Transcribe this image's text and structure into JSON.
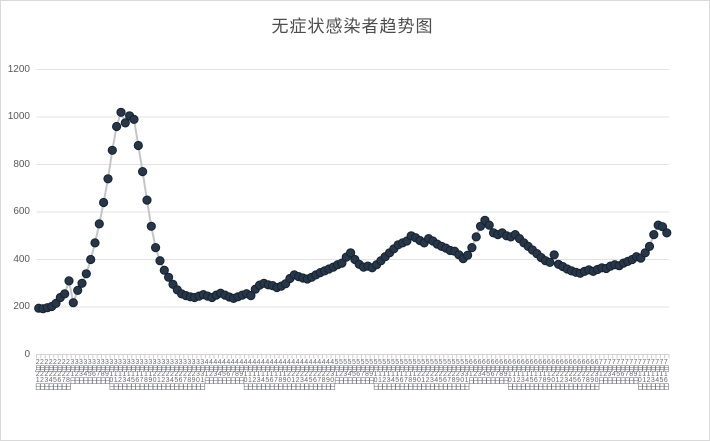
{
  "window": {
    "background": "#ffffff",
    "border_color": "#d9d9d9"
  },
  "chart_data": {
    "type": "line",
    "title": "无症状感染者趋势图",
    "xlabel": "",
    "ylabel": "",
    "ylim": [
      0,
      1200
    ],
    "y_ticks": [
      0,
      200,
      400,
      600,
      800,
      1000,
      1200
    ],
    "grid": true,
    "legend": "none",
    "marker": "circle",
    "style": {
      "marker_fill": "#263749",
      "marker_stroke": "#17222f",
      "line_color": "#c3c6c9",
      "grid_color": "#e2e2e2",
      "axis_color": "#d2d2d2",
      "tick_color": "#cfcfcf",
      "text_color": "#595959",
      "title_color": "#4d4d4d"
    },
    "categories": [
      "2月21日",
      "2月22日",
      "2月23日",
      "2月24日",
      "2月25日",
      "2月26日",
      "2月27日",
      "2月28日",
      "3月1日",
      "3月2日",
      "3月3日",
      "3月4日",
      "3月5日",
      "3月6日",
      "3月7日",
      "3月8日",
      "3月9日",
      "3月10日",
      "3月11日",
      "3月12日",
      "3月13日",
      "3月14日",
      "3月15日",
      "3月16日",
      "3月17日",
      "3月18日",
      "3月19日",
      "3月20日",
      "3月21日",
      "3月22日",
      "3月23日",
      "3月24日",
      "3月25日",
      "3月26日",
      "3月27日",
      "3月28日",
      "3月29日",
      "3月30日",
      "3月31日",
      "4月1日",
      "4月2日",
      "4月3日",
      "4月4日",
      "4月5日",
      "4月6日",
      "4月7日",
      "4月8日",
      "4月9日",
      "4月10日",
      "4月11日",
      "4月12日",
      "4月13日",
      "4月14日",
      "4月15日",
      "4月16日",
      "4月17日",
      "4月18日",
      "4月19日",
      "4月20日",
      "4月21日",
      "4月22日",
      "4月23日",
      "4月24日",
      "4月25日",
      "4月26日",
      "4月27日",
      "4月28日",
      "4月29日",
      "4月30日",
      "5月1日",
      "5月2日",
      "5月3日",
      "5月4日",
      "5月5日",
      "5月6日",
      "5月7日",
      "5月8日",
      "5月9日",
      "5月10日",
      "5月11日",
      "5月12日",
      "5月13日",
      "5月14日",
      "5月15日",
      "5月16日",
      "5月17日",
      "5月18日",
      "5月19日",
      "5月20日",
      "5月21日",
      "5月22日",
      "5月23日",
      "5月24日",
      "5月25日",
      "5月26日",
      "5月27日",
      "5月28日",
      "5月29日",
      "5月30日",
      "5月31日",
      "6月1日",
      "6月2日",
      "6月3日",
      "6月4日",
      "6月5日",
      "6月6日",
      "6月7日",
      "6月8日",
      "6月9日",
      "6月10日",
      "6月11日",
      "6月12日",
      "6月13日",
      "6月14日",
      "6月15日",
      "6月16日",
      "6月17日",
      "6月18日",
      "6月19日",
      "6月20日",
      "6月21日",
      "6月22日",
      "6月23日",
      "6月24日",
      "6月25日",
      "6月26日",
      "6月27日",
      "6月28日",
      "6月29日",
      "6月30日",
      "7月1日",
      "7月2日",
      "7月3日",
      "7月4日",
      "7月5日",
      "7月6日",
      "7月7日",
      "7月8日",
      "7月9日",
      "7月10日",
      "7月11日",
      "7月12日",
      "7月13日",
      "7月14日",
      "7月15日",
      "7月16日"
    ],
    "series": [
      {
        "name": "无症状感染者",
        "values": [
          195,
          193,
          197,
          202,
          215,
          240,
          255,
          310,
          218,
          270,
          300,
          340,
          400,
          470,
          550,
          640,
          740,
          860,
          960,
          1020,
          975,
          1005,
          990,
          880,
          770,
          650,
          540,
          450,
          395,
          355,
          325,
          295,
          272,
          255,
          248,
          243,
          240,
          246,
          252,
          246,
          240,
          250,
          258,
          250,
          242,
          236,
          243,
          250,
          256,
          248,
          275,
          292,
          300,
          293,
          290,
          282,
          288,
          298,
          320,
          335,
          328,
          322,
          318,
          325,
          335,
          345,
          352,
          360,
          368,
          378,
          385,
          410,
          428,
          400,
          380,
          368,
          372,
          365,
          378,
          395,
          412,
          428,
          445,
          462,
          470,
          478,
          500,
          492,
          480,
          470,
          488,
          478,
          465,
          455,
          448,
          438,
          435,
          420,
          404,
          418,
          450,
          495,
          540,
          565,
          545,
          512,
          505,
          512,
          500,
          495,
          505,
          488,
          470,
          455,
          440,
          425,
          408,
          395,
          388,
          420,
          380,
          370,
          360,
          352,
          346,
          342,
          350,
          356,
          350,
          358,
          365,
          362,
          372,
          378,
          374,
          385,
          392,
          400,
          412,
          406,
          428,
          455,
          505,
          545,
          538,
          512
        ]
      }
    ]
  }
}
